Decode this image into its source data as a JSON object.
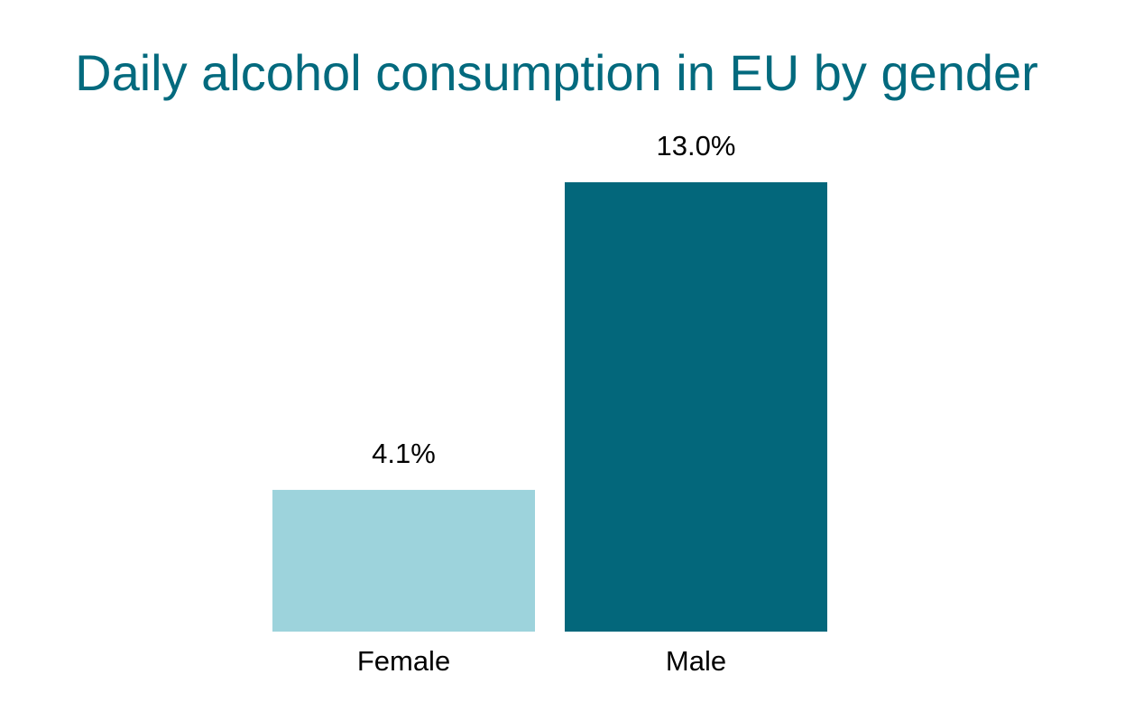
{
  "chart_data": {
    "type": "bar",
    "title": "Daily alcohol consumption in EU by gender",
    "categories": [
      "Female",
      "Male"
    ],
    "values": [
      4.1,
      13.0
    ],
    "value_labels": [
      "4.1%",
      "13.0%"
    ],
    "colors": [
      "#9dd3dc",
      "#03677b"
    ]
  }
}
